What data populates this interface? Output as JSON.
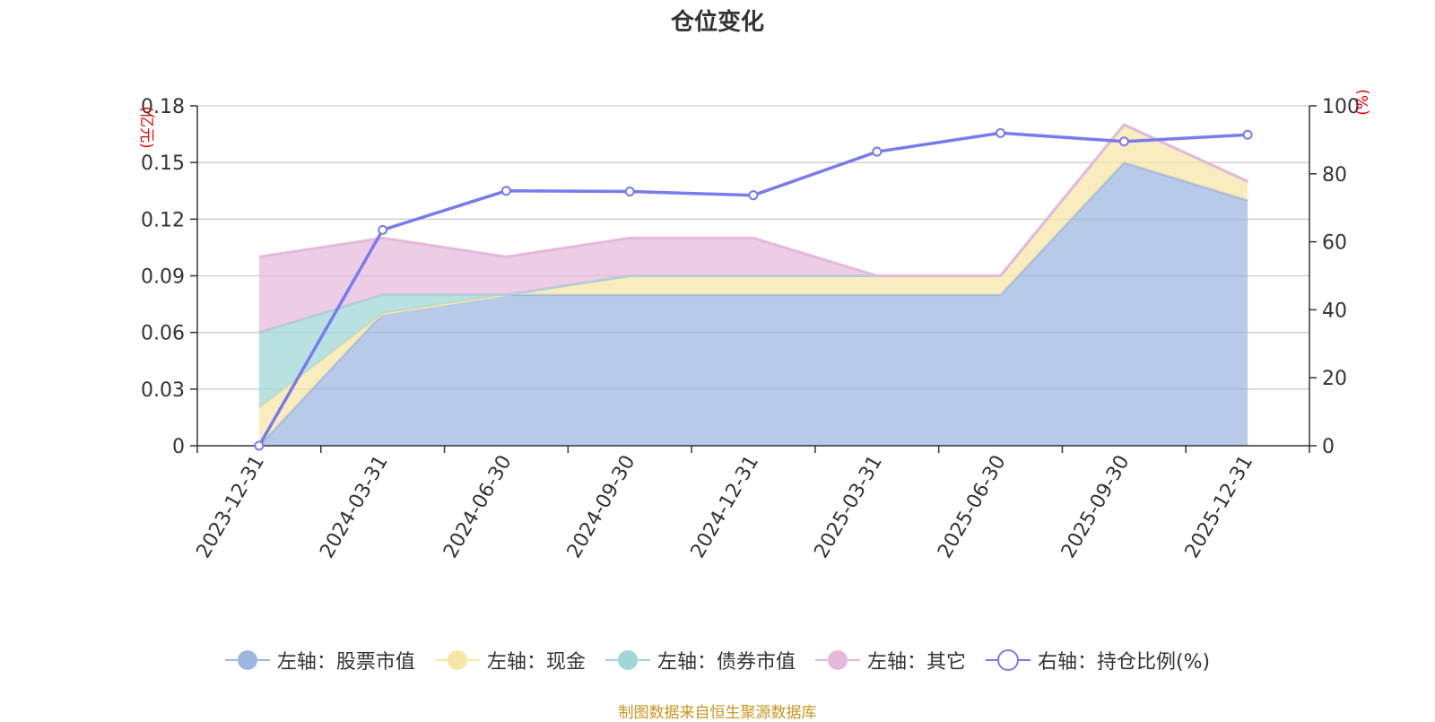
{
  "chart_data": {
    "type": "area",
    "title": "仓位变化",
    "categories": [
      "2023-12-31",
      "2024-03-31",
      "2024-06-30",
      "2024-09-30",
      "2024-12-31",
      "2025-03-31",
      "2025-06-30",
      "2025-09-30",
      "2025-12-31"
    ],
    "left_axis": {
      "unit": "(亿元)",
      "min": 0,
      "max": 0.18,
      "ticks": [
        "0",
        "0.03",
        "0.06",
        "0.09",
        "0.12",
        "0.15",
        "0.18"
      ]
    },
    "right_axis": {
      "unit": "(%)",
      "min": 0,
      "max": 100,
      "ticks": [
        "0",
        "20",
        "40",
        "60",
        "80",
        "100"
      ]
    },
    "stacked_series": [
      {
        "name": "左轴：股票市值",
        "color": "#9db6e0",
        "values": [
          0.0,
          0.07,
          0.08,
          0.08,
          0.08,
          0.08,
          0.08,
          0.15,
          0.13
        ]
      },
      {
        "name": "左轴：现金",
        "color": "#f7e6a6",
        "values": [
          0.02,
          0.0,
          0.0,
          0.01,
          0.01,
          0.01,
          0.01,
          0.02,
          0.01
        ]
      },
      {
        "name": "左轴：债券市值",
        "color": "#9fd6d6",
        "values": [
          0.04,
          0.01,
          0.0,
          0.0,
          0.0,
          0.0,
          0.0,
          0.0,
          0.0
        ]
      },
      {
        "name": "左轴：其它",
        "color": "#e6b8dc",
        "values": [
          0.04,
          0.03,
          0.02,
          0.02,
          0.02,
          0.0,
          0.0,
          0.0,
          0.0
        ]
      }
    ],
    "line_series": {
      "name": "右轴：持仓比例(%)",
      "color": "#7a7af0",
      "values": [
        0,
        63.5,
        75,
        74.8,
        73.7,
        86.5,
        92,
        89.5,
        91.5
      ]
    }
  },
  "source_text": "制图数据来自恒生聚源数据库"
}
